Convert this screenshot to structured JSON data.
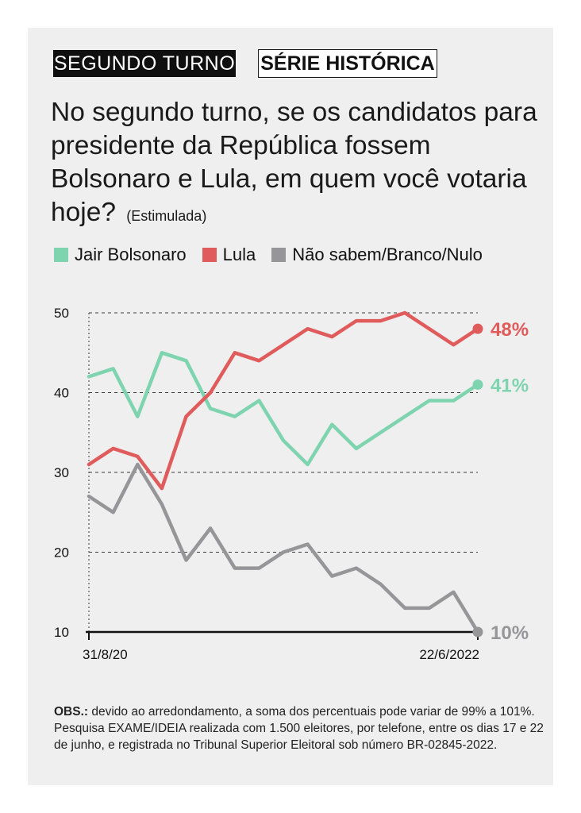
{
  "tags": {
    "round": "SEGUNDO TURNO",
    "series": "SÉRIE HISTÓRICA"
  },
  "question": {
    "text": "No segundo turno, se os candidatos para presidente da República fossem Bolsonaro e Lula, em quem você votaria hoje?",
    "qualifier": "(Estimulada)"
  },
  "note": {
    "label": "OBS.:",
    "text": " devido ao arredondamento, a soma dos percentuais pode variar de 99% a 101%. Pesquisa EXAME/IDEIA realizada com 1.500 eleitores, por telefone, entre os dias 17 e 22 de junho, e registrada no Tribunal Superior Eleitoral sob número BR-02845-2022."
  },
  "colors": {
    "bolsonaro": "#7fd4b0",
    "lula": "#e05c5c",
    "outros": "#969699",
    "grid": "#333333"
  },
  "chart_data": {
    "type": "line",
    "title": "",
    "x_start_label": "31/8/20",
    "x_end_label": "22/6/2022",
    "ylim": [
      10,
      50
    ],
    "yticks": [
      10,
      20,
      30,
      40,
      50
    ],
    "grid": "dashed horizontal",
    "series": [
      {
        "name": "Jair Bolsonaro",
        "color": "#7fd4b0",
        "end_label": "41%",
        "values": [
          42,
          43,
          37,
          45,
          44,
          38,
          37,
          39,
          34,
          31,
          36,
          33,
          35,
          37,
          39,
          39,
          41
        ]
      },
      {
        "name": "Lula",
        "color": "#e05c5c",
        "end_label": "48%",
        "values": [
          31,
          33,
          32,
          28,
          37,
          40,
          45,
          44,
          46,
          48,
          47,
          49,
          49,
          50,
          48,
          46,
          48
        ]
      },
      {
        "name": "Não sabem/Branco/Nulo",
        "color": "#969699",
        "end_label": "10%",
        "values": [
          27,
          25,
          31,
          26,
          19,
          23,
          18,
          18,
          20,
          21,
          17,
          18,
          16,
          13,
          13,
          15,
          10
        ]
      }
    ]
  }
}
